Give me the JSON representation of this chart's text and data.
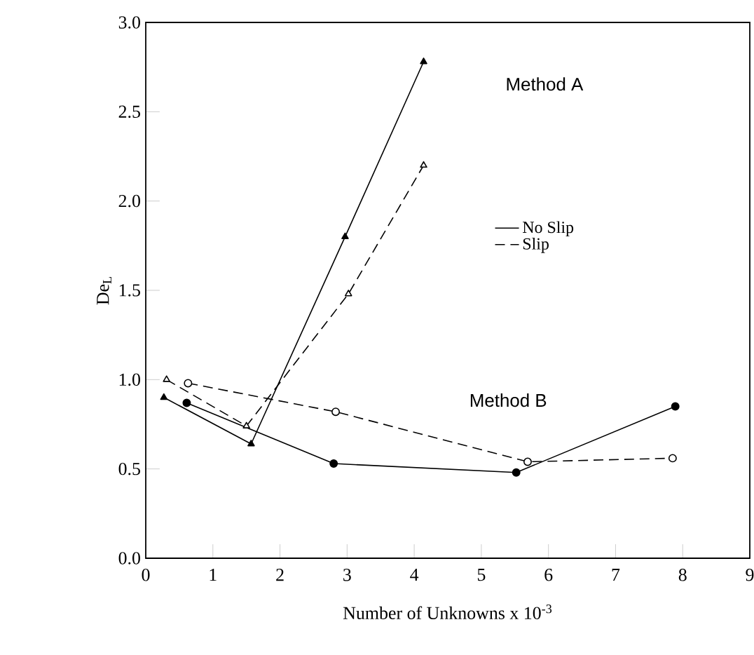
{
  "chart_data": {
    "type": "line",
    "xlabel": "Number of Unknowns x 10$^{-3}$",
    "ylabel": "De$_{L}$",
    "xlim": [
      0,
      9
    ],
    "xticks": [
      0,
      1,
      2,
      3,
      4,
      5,
      6,
      7,
      8,
      9
    ],
    "ylim": [
      0,
      3
    ],
    "yticks": [
      {
        "value": 0,
        "label": "0.0"
      },
      {
        "value": 0.5,
        "label": "0.5"
      },
      {
        "value": 1,
        "label": "1.0"
      },
      {
        "value": 1.5,
        "label": "1.5"
      },
      {
        "value": 2,
        "label": "2.0"
      },
      {
        "value": 2.5,
        "label": "2.5"
      },
      {
        "value": 3,
        "label": "3.0"
      }
    ],
    "legend": "right",
    "grid": false,
    "series": [
      {
        "name": "No Slip",
        "color": "#000000",
        "marker": "triangle",
        "line_style": "solid",
        "x": [
          0.27,
          1.57,
          2.97,
          4.14
        ],
        "values": [
          0.9,
          0.64,
          1.8,
          2.78
        ]
      },
      {
        "name": "Slip",
        "color": "#000000",
        "marker": "triangle",
        "line_style": "dashed",
        "x": [
          0.31,
          1.5,
          3.02,
          4.14
        ],
        "values": [
          1.0,
          0.74,
          1.48,
          2.2
        ]
      },
      {
        "color": "#000000",
        "marker": "circle",
        "line_style": "solid",
        "x": [
          0.61,
          2.8,
          5.52,
          7.89
        ],
        "values": [
          0.87,
          0.53,
          0.48,
          0.85
        ]
      },
      {
        "color": "#000000",
        "marker": "circle",
        "line_style": "dashed",
        "x": [
          0.63,
          2.83,
          5.69,
          7.85
        ],
        "values": [
          0.98,
          0.82,
          0.54,
          0.56
        ]
      }
    ],
    "annotations": [
      "Method A",
      "Method B"
    ]
  }
}
